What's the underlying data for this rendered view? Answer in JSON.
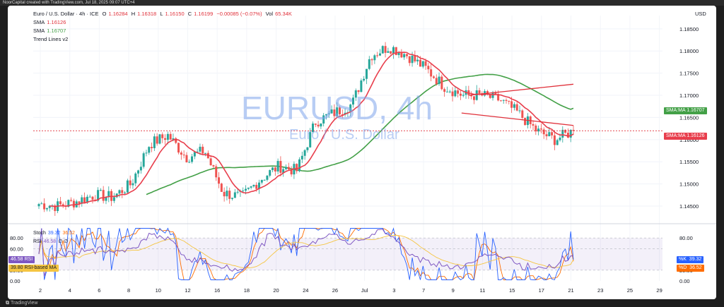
{
  "window": {
    "top_text": "NoorCapital created with TradingView.com, Jul 18, 2025 09:07 UTC+4",
    "bottom_brand": "TradingView"
  },
  "legend": {
    "symbol": "Euro / U.S. Dollar · 4h · ICE",
    "open_label": "O",
    "open": "1.16284",
    "high_label": "H",
    "high": "1.16318",
    "low_label": "L",
    "low": "1.16150",
    "close_label": "C",
    "close": "1.16199",
    "change": "−0.00085 (−0.07%)",
    "vol_label": "Vol",
    "vol": "65.34K",
    "sma1_label": "SMA",
    "sma1": "1.16126",
    "sma2_label": "SMA",
    "sma2": "1.16707",
    "trend": "Trend Lines v2"
  },
  "watermark": {
    "symbol": "EURUSD, 4h",
    "name": "Euro / U.S. Dollar"
  },
  "price_axis": {
    "currency": "USD",
    "ticks": [
      "1.18500",
      "1.18000",
      "1.17500",
      "1.17000",
      "1.16500",
      "1.16000",
      "1.15500",
      "1.15000",
      "1.14500"
    ]
  },
  "price_tags": {
    "sma_long_label": "SMA:MA",
    "sma_long_value": "1.16707",
    "sma_short_label": "SMA:MA",
    "sma_short_value": "1.16126"
  },
  "time_axis": {
    "ticks": [
      "2",
      "4",
      "6",
      "8",
      "10",
      "12",
      "16",
      "18",
      "20",
      "24",
      "26",
      "Jul",
      "3",
      "7",
      "9",
      "11",
      "15",
      "17",
      "21",
      "23",
      "25",
      "29"
    ]
  },
  "indicator": {
    "stoch_label": "Stoch",
    "stoch_k": "39.32",
    "stoch_d": "36.52",
    "rsi_label": "RSI",
    "rsi_value": "46.58",
    "rsi_extra": "∅ ∅",
    "axis_ticks": [
      "80.00",
      "60.00",
      "20.00",
      "0.00"
    ],
    "right_ticks": [
      "80.00",
      "20.00",
      "0.00"
    ],
    "left_tags": [
      {
        "value": "46.58",
        "label": "RSI"
      },
      {
        "value": "39.80",
        "label": "RSI-based MA"
      }
    ],
    "right_tags": [
      {
        "label": "%K",
        "value": "39.32"
      },
      {
        "label": "%D",
        "value": "36.52"
      }
    ]
  },
  "colors": {
    "up": "#26a69a",
    "down": "#ef5350",
    "sma_short": "#e83e4c",
    "sma_long": "#43a047",
    "trendline": "#e0303a",
    "rsi": "#7e57c2",
    "stoch_k": "#2962ff",
    "stoch_d": "#ff6d00",
    "rsi_ma": "#f5c542"
  },
  "chart_data": {
    "type": "candlestick",
    "title": "Euro / U.S. Dollar · 4h · ICE",
    "ylabel": "USD",
    "ylim": [
      1.1415,
      1.188
    ],
    "x_labels": [
      "2",
      "4",
      "6",
      "8",
      "10",
      "12",
      "16",
      "18",
      "20",
      "24",
      "26",
      "Jul",
      "3",
      "7",
      "9",
      "11",
      "15",
      "17",
      "21",
      "23",
      "25",
      "29"
    ],
    "anchor_closes": [
      1.1455,
      1.145,
      1.146,
      1.1475,
      1.147,
      1.15,
      1.159,
      1.161,
      1.156,
      1.1575,
      1.148,
      1.147,
      1.151,
      1.154,
      1.153,
      1.164,
      1.166,
      1.168,
      1.179,
      1.181,
      1.179,
      1.176,
      1.172,
      1.17,
      1.17,
      1.169,
      1.166,
      1.162,
      1.16,
      1.162
    ],
    "sma_short_last": 1.16126,
    "sma_long_last": 1.16707,
    "last_close": 1.16199
  }
}
